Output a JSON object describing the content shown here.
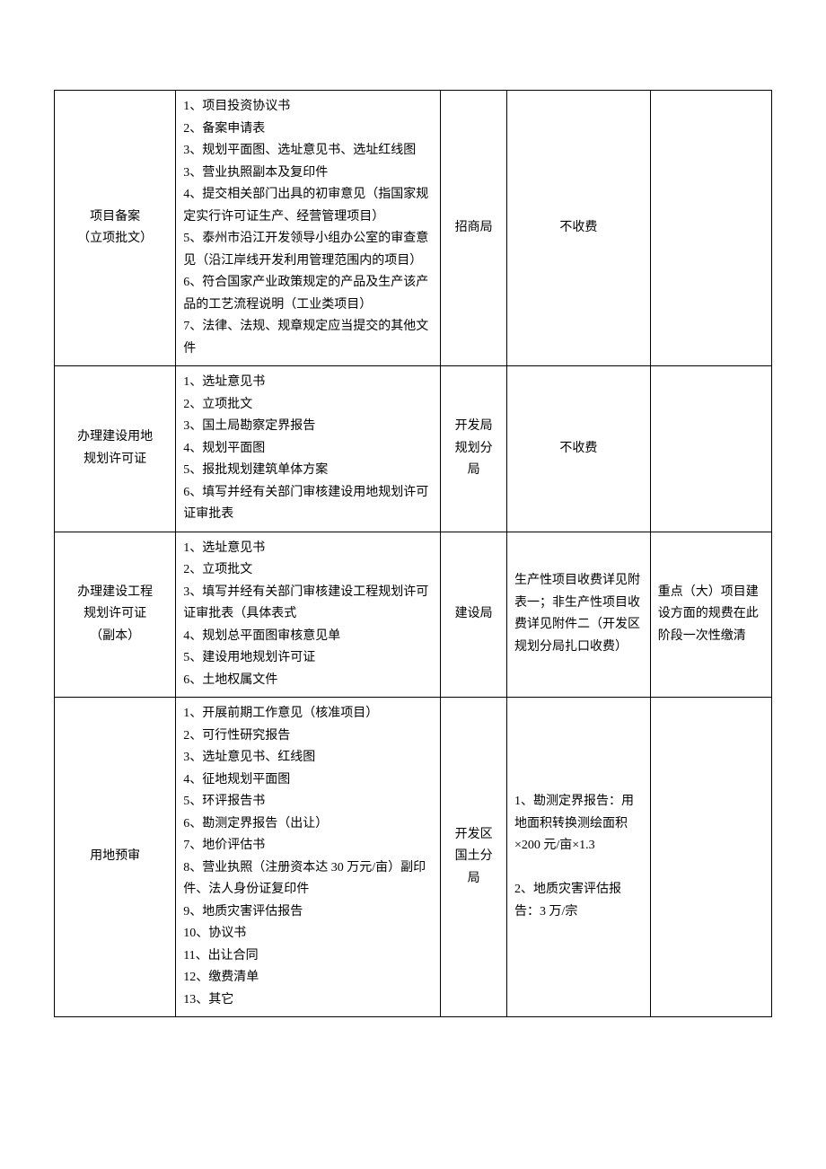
{
  "rows": [
    {
      "name": "项目备案\n（立项批文）",
      "docs": "1、项目投资协议书\n2、备案申请表\n3、规划平面图、选址意见书、选址红线图\n3、营业执照副本及复印件\n4、提交相关部门出具的初审意见（指国家规定实行许可证生产、经营管理项目）\n5、泰州市沿江开发领导小组办公室的审查意见（沿江岸线开发利用管理范围内的项目）\n6、符合国家产业政策规定的产品及生产该产品的工艺流程说明（工业类项目）\n7、法律、法规、规章规定应当提交的其他文件",
      "dept": "招商局",
      "fee": "不收费",
      "fee_center": true,
      "note": ""
    },
    {
      "name": "办理建设用地\n规划许可证",
      "docs": "1、选址意见书\n2、立项批文\n3、国土局勘察定界报告\n4、规划平面图\n5、报批规划建筑单体方案\n6、填写并经有关部门审核建设用地规划许可证审批表",
      "dept": "开发局\n规划分\n局",
      "fee": "不收费",
      "fee_center": true,
      "note": ""
    },
    {
      "name": "办理建设工程\n规划许可证\n（副本）",
      "docs": "1、选址意见书\n2、立项批文\n3、填写并经有关部门审核建设工程规划许可证审批表（具体表式\n4、规划总平面图审核意见单\n5、建设用地规划许可证\n6、土地权属文件",
      "dept": "建设局",
      "fee": "生产性项目收费详见附表一；非生产性项目收费详见附件二（开发区规划分局扎口收费）",
      "fee_center": false,
      "note": "重点（大）项目建设方面的规费在此阶段一次性缴清"
    },
    {
      "name": "用地预审",
      "docs": "1、开展前期工作意见（核准项目）\n2、可行性研究报告\n3、选址意见书、红线图\n4、征地规划平面图\n5、环评报告书\n6、勘测定界报告（出让）\n7、地价评估书\n8、营业执照（注册资本达 30 万元/亩）副印件、法人身份证复印件\n9、地质灾害评估报告\n10、协议书\n11、出让合同\n12、缴费清单\n13、其它",
      "dept": "开发区\n国土分\n局",
      "fee": "1、勘测定界报告：用地面积转换测绘面积×200 元/亩×1.3\n\n2、地质灾害评估报告：3 万/宗",
      "fee_center": false,
      "note": ""
    }
  ]
}
